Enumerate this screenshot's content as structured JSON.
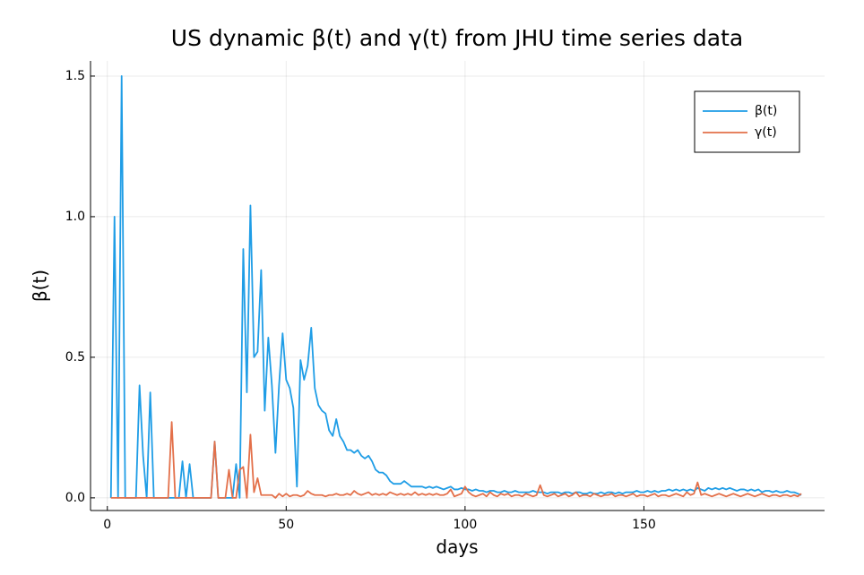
{
  "chart_data": {
    "type": "line",
    "title": "US dynamic β(t) and γ(t) from JHU time series data",
    "xlabel": "days",
    "ylabel": "β(t)",
    "x": [
      1,
      2,
      3,
      4,
      5,
      6,
      7,
      8,
      9,
      10,
      11,
      12,
      13,
      14,
      15,
      16,
      17,
      18,
      19,
      20,
      21,
      22,
      23,
      24,
      25,
      26,
      27,
      28,
      29,
      30,
      31,
      32,
      33,
      34,
      35,
      36,
      37,
      38,
      39,
      40,
      41,
      42,
      43,
      44,
      45,
      46,
      47,
      48,
      49,
      50,
      51,
      52,
      53,
      54,
      55,
      56,
      57,
      58,
      59,
      60,
      61,
      62,
      63,
      64,
      65,
      66,
      67,
      68,
      69,
      70,
      71,
      72,
      73,
      74,
      75,
      76,
      77,
      78,
      79,
      80,
      81,
      82,
      83,
      84,
      85,
      86,
      87,
      88,
      89,
      90,
      91,
      92,
      93,
      94,
      95,
      96,
      97,
      98,
      99,
      100,
      101,
      102,
      103,
      104,
      105,
      106,
      107,
      108,
      109,
      110,
      111,
      112,
      113,
      114,
      115,
      116,
      117,
      118,
      119,
      120,
      121,
      122,
      123,
      124,
      125,
      126,
      127,
      128,
      129,
      130,
      131,
      132,
      133,
      134,
      135,
      136,
      137,
      138,
      139,
      140,
      141,
      142,
      143,
      144,
      145,
      146,
      147,
      148,
      149,
      150,
      151,
      152,
      153,
      154,
      155,
      156,
      157,
      158,
      159,
      160,
      161,
      162,
      163,
      164,
      165,
      166,
      167,
      168,
      169,
      170,
      171,
      172,
      173,
      174,
      175,
      176,
      177,
      178,
      179,
      180,
      181,
      182,
      183,
      184,
      185,
      186,
      187,
      188,
      189,
      190,
      191,
      192,
      193,
      194
    ],
    "series": [
      {
        "name": "β(t)",
        "color": "#1f9de6",
        "values": [
          0,
          1.0,
          0,
          1.5,
          0,
          0,
          0,
          0,
          0.4,
          0.15,
          0,
          0.375,
          0,
          0,
          0,
          0,
          0,
          0,
          0,
          0,
          0.13,
          0,
          0.12,
          0,
          0,
          0,
          0,
          0,
          0,
          0.2,
          0,
          0,
          0,
          0,
          0,
          0.12,
          0,
          0.885,
          0.375,
          1.04,
          0.5,
          0.52,
          0.81,
          0.31,
          0.57,
          0.4,
          0.16,
          0.4,
          0.585,
          0.42,
          0.39,
          0.32,
          0.04,
          0.49,
          0.42,
          0.47,
          0.605,
          0.39,
          0.33,
          0.31,
          0.3,
          0.24,
          0.22,
          0.28,
          0.22,
          0.2,
          0.17,
          0.17,
          0.16,
          0.17,
          0.15,
          0.14,
          0.15,
          0.13,
          0.1,
          0.09,
          0.09,
          0.08,
          0.06,
          0.05,
          0.05,
          0.05,
          0.06,
          0.05,
          0.04,
          0.04,
          0.04,
          0.04,
          0.035,
          0.04,
          0.035,
          0.04,
          0.035,
          0.03,
          0.035,
          0.04,
          0.03,
          0.03,
          0.035,
          0.03,
          0.03,
          0.025,
          0.03,
          0.025,
          0.025,
          0.02,
          0.025,
          0.025,
          0.02,
          0.02,
          0.025,
          0.02,
          0.02,
          0.025,
          0.02,
          0.02,
          0.02,
          0.02,
          0.025,
          0.02,
          0.02,
          0.02,
          0.015,
          0.02,
          0.02,
          0.02,
          0.015,
          0.02,
          0.02,
          0.015,
          0.02,
          0.02,
          0.015,
          0.015,
          0.02,
          0.015,
          0.015,
          0.02,
          0.015,
          0.02,
          0.02,
          0.015,
          0.02,
          0.015,
          0.02,
          0.02,
          0.02,
          0.025,
          0.02,
          0.02,
          0.025,
          0.02,
          0.025,
          0.02,
          0.025,
          0.025,
          0.03,
          0.025,
          0.03,
          0.025,
          0.03,
          0.025,
          0.03,
          0.025,
          0.035,
          0.03,
          0.025,
          0.035,
          0.03,
          0.035,
          0.03,
          0.035,
          0.03,
          0.035,
          0.03,
          0.025,
          0.03,
          0.03,
          0.025,
          0.03,
          0.025,
          0.03,
          0.02,
          0.025,
          0.025,
          0.02,
          0.025,
          0.02,
          0.02,
          0.025,
          0.02,
          0.02,
          0.015,
          0.01
        ]
      },
      {
        "name": "γ(t)",
        "color": "#e3704a",
        "values": [
          0,
          0,
          0,
          0,
          0,
          0,
          0,
          0,
          0,
          0,
          0,
          0,
          0,
          0,
          0,
          0,
          0,
          0.27,
          0,
          0,
          0,
          0,
          0,
          0,
          0,
          0,
          0,
          0,
          0,
          0.2,
          0,
          0,
          0,
          0.1,
          0,
          0,
          0.1,
          0.11,
          0,
          0.225,
          0.02,
          0.07,
          0.01,
          0.01,
          0.01,
          0.01,
          0,
          0.015,
          0.005,
          0.015,
          0.005,
          0.01,
          0.01,
          0.005,
          0.01,
          0.025,
          0.015,
          0.01,
          0.01,
          0.01,
          0.005,
          0.01,
          0.01,
          0.015,
          0.01,
          0.01,
          0.015,
          0.01,
          0.025,
          0.015,
          0.01,
          0.015,
          0.02,
          0.01,
          0.015,
          0.01,
          0.015,
          0.01,
          0.02,
          0.015,
          0.01,
          0.015,
          0.01,
          0.015,
          0.01,
          0.02,
          0.01,
          0.015,
          0.01,
          0.015,
          0.01,
          0.015,
          0.01,
          0.01,
          0.015,
          0.03,
          0.005,
          0.01,
          0.015,
          0.04,
          0.02,
          0.01,
          0.005,
          0.01,
          0.015,
          0.005,
          0.02,
          0.01,
          0.005,
          0.015,
          0.01,
          0.015,
          0.005,
          0.01,
          0.01,
          0.005,
          0.015,
          0.01,
          0.005,
          0.01,
          0.045,
          0.01,
          0.005,
          0.01,
          0.015,
          0.005,
          0.01,
          0.015,
          0.005,
          0.01,
          0.02,
          0.005,
          0.01,
          0.01,
          0.005,
          0.015,
          0.01,
          0.005,
          0.01,
          0.01,
          0.015,
          0.005,
          0.01,
          0.01,
          0.005,
          0.01,
          0.015,
          0.005,
          0.01,
          0.01,
          0.005,
          0.01,
          0.015,
          0.005,
          0.01,
          0.01,
          0.005,
          0.01,
          0.015,
          0.01,
          0.005,
          0.02,
          0.01,
          0.015,
          0.055,
          0.01,
          0.015,
          0.01,
          0.005,
          0.01,
          0.015,
          0.01,
          0.005,
          0.01,
          0.015,
          0.01,
          0.005,
          0.01,
          0.015,
          0.01,
          0.005,
          0.01,
          0.015,
          0.01,
          0.005,
          0.01,
          0.01,
          0.005,
          0.01,
          0.01,
          0.005,
          0.01,
          0.005,
          0.015
        ]
      }
    ],
    "xlim": [
      -4.7,
      200.5
    ],
    "ylim": [
      -0.045,
      1.554
    ],
    "xticks": [
      0,
      50,
      100,
      150
    ],
    "yticks": [
      {
        "value": 0,
        "label": "0.0"
      },
      0.5,
      {
        "value": 1,
        "label": "1.0"
      },
      1.5
    ],
    "grid": true,
    "legend": "top-right"
  }
}
